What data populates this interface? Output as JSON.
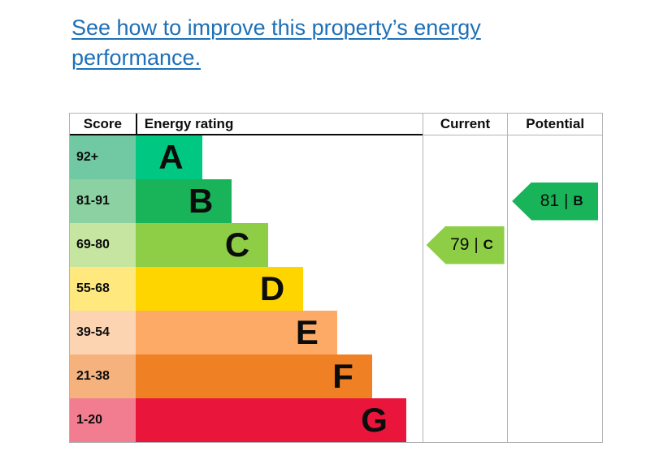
{
  "link": {
    "text": "See how to improve this property’s energy performance.",
    "color": "#1d70b8"
  },
  "table": {
    "headers": {
      "score": "Score",
      "rating": "Energy rating",
      "current": "Current",
      "potential": "Potential"
    },
    "bands": [
      {
        "letter": "A",
        "score": "92+",
        "color": "#00c781",
        "score_bg": "#71c9a3",
        "width_pct": 23.2
      },
      {
        "letter": "B",
        "score": "81-91",
        "color": "#19b459",
        "score_bg": "#8bd1a1",
        "width_pct": 33.6
      },
      {
        "letter": "C",
        "score": "69-80",
        "color": "#8dce46",
        "score_bg": "#c5e5a0",
        "width_pct": 46.3
      },
      {
        "letter": "D",
        "score": "55-68",
        "color": "#ffd500",
        "score_bg": "#ffe97e",
        "width_pct": 58.5
      },
      {
        "letter": "E",
        "score": "39-54",
        "color": "#fcaa65",
        "score_bg": "#fdd4b2",
        "width_pct": 70.3
      },
      {
        "letter": "F",
        "score": "21-38",
        "color": "#ef8023",
        "score_bg": "#f6b27c",
        "width_pct": 82.5
      },
      {
        "letter": "G",
        "score": "1-20",
        "color": "#e9153b",
        "score_bg": "#f27d91",
        "width_pct": 94.4
      }
    ],
    "current": {
      "value": "79",
      "separator": "|",
      "band": "C",
      "color": "#8dce46"
    },
    "potential": {
      "value": "81",
      "separator": "|",
      "band": "B",
      "color": "#19b459"
    }
  },
  "chart_data": {
    "type": "bar",
    "title": "Energy rating",
    "orientation": "horizontal",
    "categories": [
      "A",
      "B",
      "C",
      "D",
      "E",
      "F",
      "G"
    ],
    "score_ranges": [
      "92+",
      "81-91",
      "69-80",
      "55-68",
      "39-54",
      "21-38",
      "1-20"
    ],
    "bar_lengths_pct_of_column": [
      23.2,
      33.6,
      46.3,
      58.5,
      70.3,
      82.5,
      94.4
    ],
    "bar_colors": [
      "#00c781",
      "#19b459",
      "#8dce46",
      "#ffd500",
      "#fcaa65",
      "#ef8023",
      "#e9153b"
    ],
    "markers": [
      {
        "label": "Current",
        "value": 79,
        "band": "C",
        "color": "#8dce46"
      },
      {
        "label": "Potential",
        "value": 81,
        "band": "B",
        "color": "#19b459"
      }
    ],
    "columns": [
      "Score",
      "Energy rating",
      "Current",
      "Potential"
    ],
    "legend_position": "none",
    "grid": false
  }
}
